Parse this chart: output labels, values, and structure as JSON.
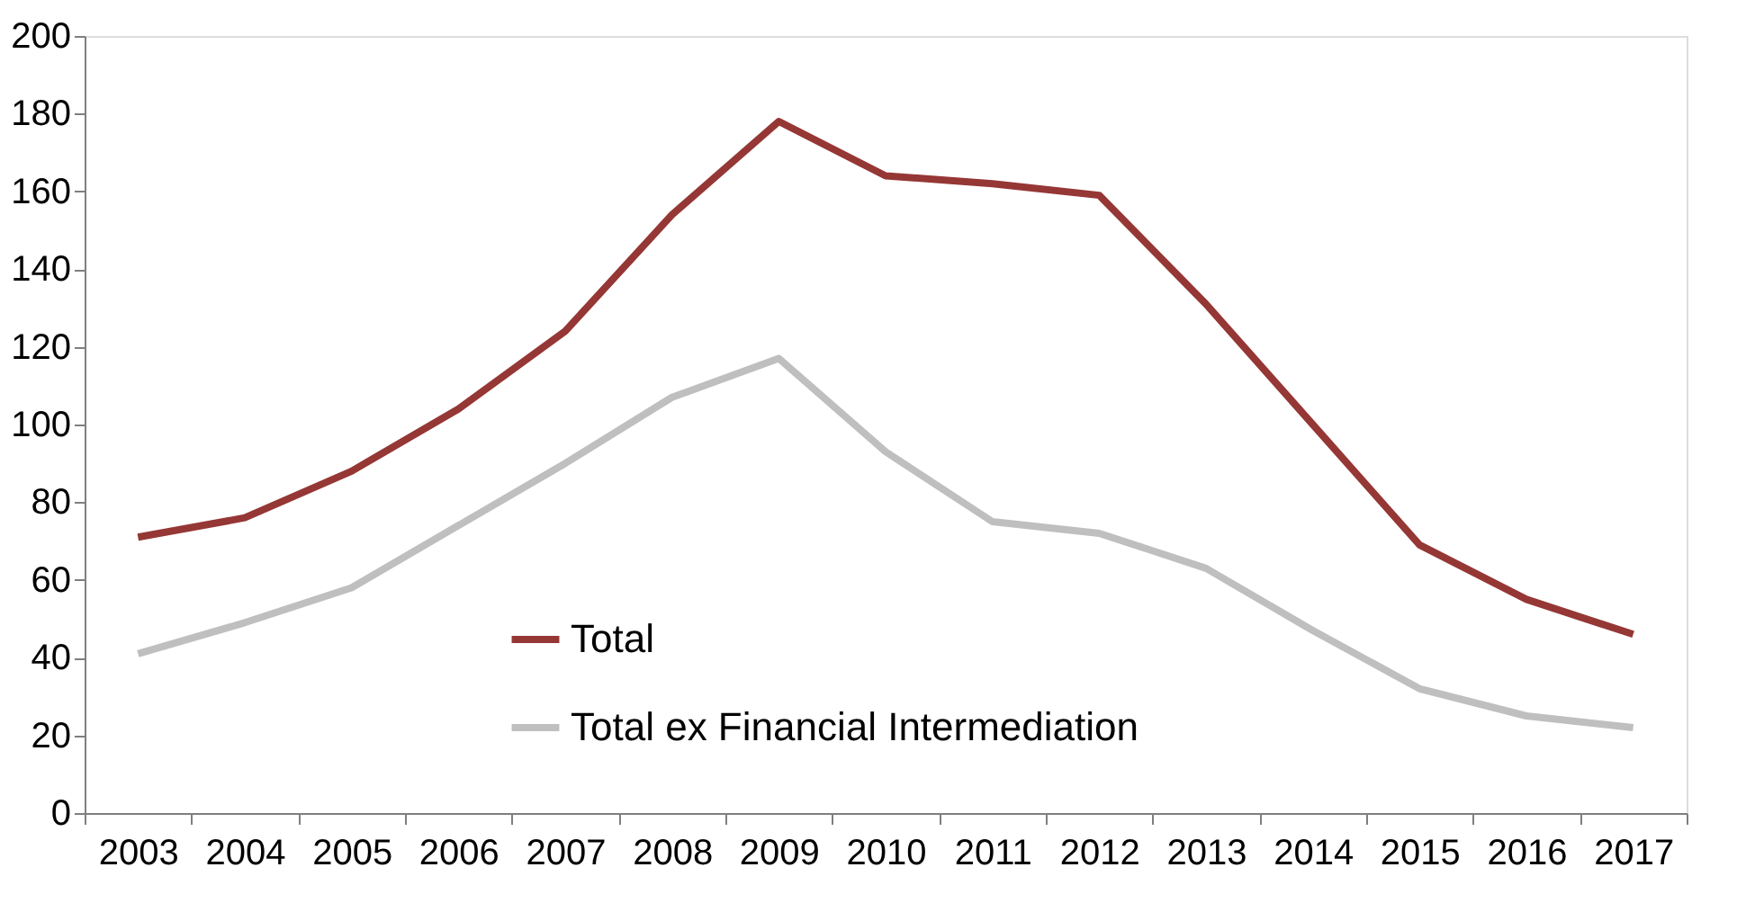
{
  "chart_data": {
    "type": "line",
    "categories": [
      "2003",
      "2004",
      "2005",
      "2006",
      "2007",
      "2008",
      "2009",
      "2010",
      "2011",
      "2012",
      "2013",
      "2014",
      "2015",
      "2016",
      "2017"
    ],
    "series": [
      {
        "name": "Total",
        "color": "#953735",
        "values": [
          71,
          76,
          88,
          104,
          124,
          154,
          178,
          164,
          162,
          159,
          131,
          100,
          69,
          55,
          46
        ]
      },
      {
        "name": "Total ex Financial Intermediation",
        "color": "#bfbfbf",
        "values": [
          41,
          49,
          58,
          74,
          90,
          107,
          117,
          93,
          75,
          72,
          63,
          47,
          32,
          25,
          22
        ]
      }
    ],
    "ylim": [
      0,
      200
    ],
    "yticks": [
      0,
      20,
      40,
      60,
      80,
      100,
      120,
      140,
      160,
      180,
      200
    ],
    "grid": false,
    "legend": "bottom",
    "marker": "none",
    "line_style": "solid"
  }
}
